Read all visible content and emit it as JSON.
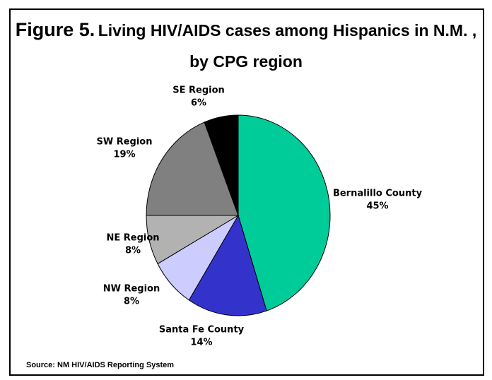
{
  "chart_data": {
    "type": "pie",
    "figure_label": "Figure 5.",
    "title": "Living HIV/AIDS cases among Hispanics in N.M. , by CPG region",
    "categories": [
      "Bernalillo County",
      "Santa Fe County",
      "NW Region",
      "NE Region",
      "SW Region",
      "SE Region"
    ],
    "values": [
      45,
      14,
      8,
      8,
      19,
      6
    ],
    "value_labels": [
      "45%",
      "14%",
      "8%",
      "8%",
      "19%",
      "6%"
    ],
    "colors": [
      "#00cc99",
      "#3333cc",
      "#ccccff",
      "#b2b2b2",
      "#808080",
      "#000000"
    ],
    "source": "Source: NM HIV/AIDS Reporting System"
  }
}
